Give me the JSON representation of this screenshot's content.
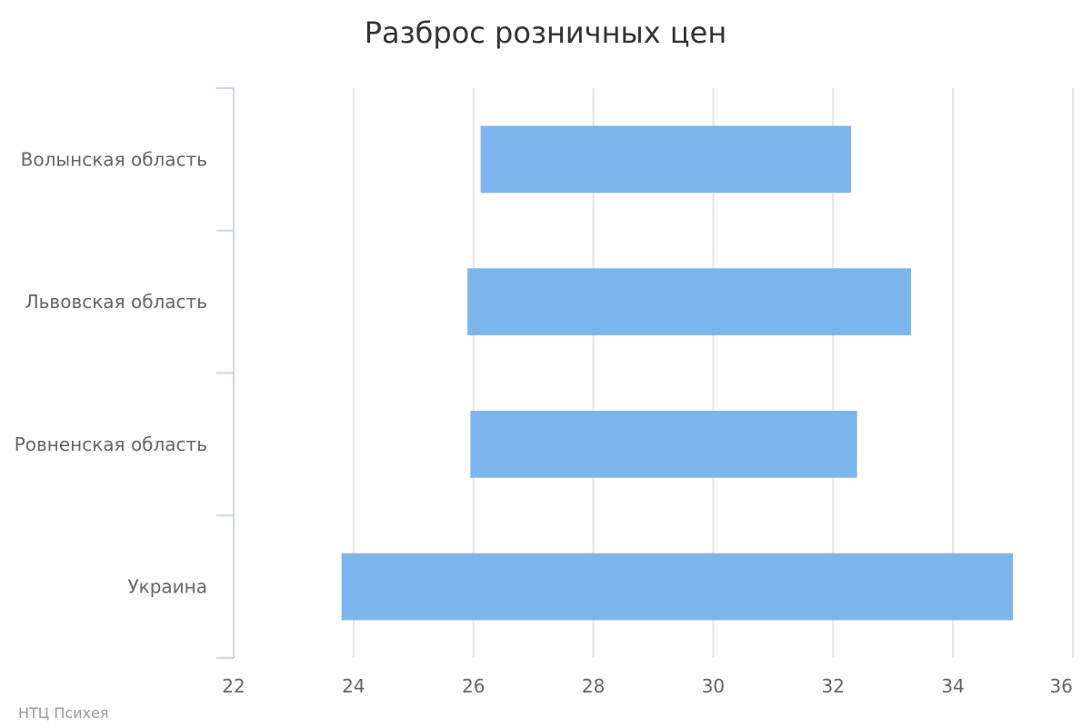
{
  "chart_data": {
    "type": "bar",
    "orientation": "horizontal",
    "title": "Разброс розничных цен",
    "categories": [
      "Волынская область",
      "Львовская область",
      "Ровненская область",
      "Украина"
    ],
    "series": [
      {
        "ranges": [
          [
            26.12,
            32.3
          ],
          [
            25.9,
            33.3
          ],
          [
            25.95,
            32.4
          ],
          [
            23.8,
            35.0
          ]
        ]
      }
    ],
    "xlim": [
      22,
      36
    ],
    "xticks": [
      22,
      24,
      26,
      28,
      30,
      32,
      34,
      36
    ],
    "grid": true,
    "legend": "none",
    "colors": {
      "bar": "#7cb5ec",
      "grid": "#e6e6e6",
      "axis": "#ccd6eb"
    }
  },
  "credit": "НТЦ Психея"
}
